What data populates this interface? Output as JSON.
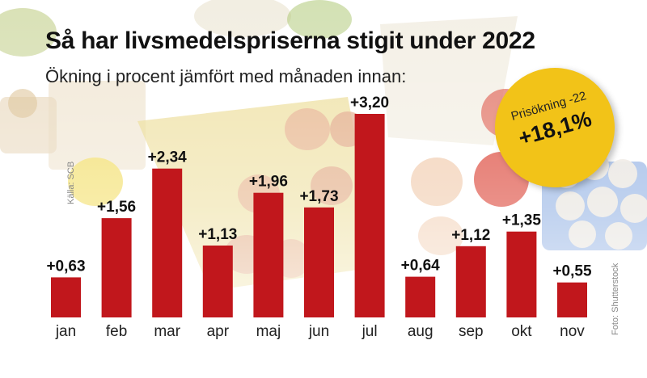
{
  "title": "Så har livsmedelspriserna stigit under 2022",
  "subtitle": "Ökning i procent jämfört med månaden innan:",
  "badge": {
    "label": "Prisökning -22",
    "value": "+18,1%"
  },
  "source": "Källa: SCB",
  "photo_credit": "Foto: Shutterstock",
  "colors": {
    "bar": "#c1171c",
    "badge": "#f2c318",
    "text": "#111111"
  },
  "chart_data": {
    "type": "bar",
    "categories": [
      "jan",
      "feb",
      "mar",
      "apr",
      "maj",
      "jun",
      "jul",
      "aug",
      "sep",
      "okt",
      "nov"
    ],
    "values": [
      0.63,
      1.56,
      2.34,
      1.13,
      1.96,
      1.73,
      3.2,
      0.64,
      1.12,
      1.35,
      0.55
    ],
    "value_labels": [
      "+0,63",
      "+1,56",
      "+2,34",
      "+1,13",
      "+1,96",
      "+1,73",
      "+3,20",
      "+0,64",
      "+1,12",
      "+1,35",
      "+0,55"
    ],
    "ylim": [
      0,
      3.2
    ],
    "grid": false,
    "legend": "none"
  }
}
